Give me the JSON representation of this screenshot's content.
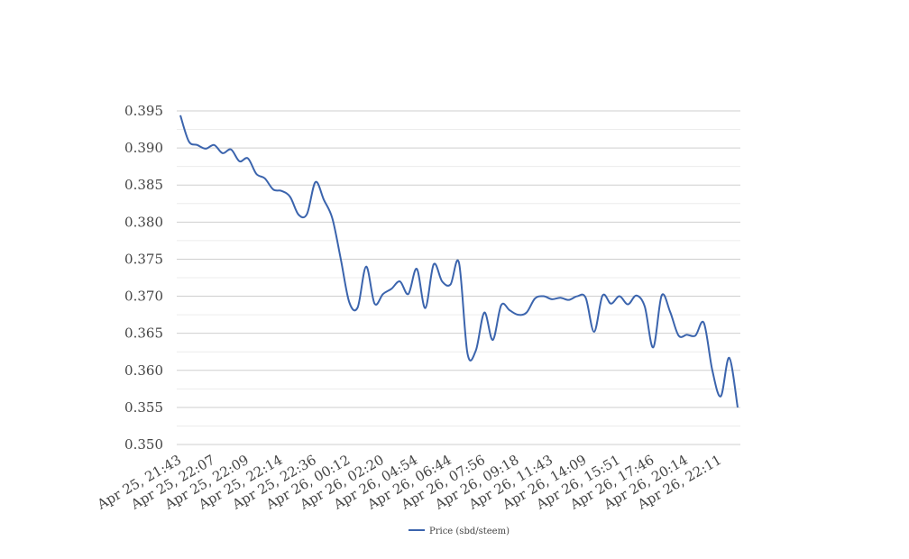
{
  "chart_data": {
    "type": "line",
    "categories": [
      "Apr 25, 21:43",
      null,
      null,
      null,
      "Apr 25, 22:07",
      null,
      null,
      null,
      "Apr 25, 22:09",
      null,
      null,
      null,
      "Apr 25, 22:14",
      null,
      null,
      null,
      "Apr 25, 22:36",
      null,
      null,
      null,
      "Apr 26, 00:12",
      null,
      null,
      null,
      "Apr 26, 02:20",
      null,
      null,
      null,
      "Apr 26, 04:54",
      null,
      null,
      null,
      "Apr 26, 06:44",
      null,
      null,
      null,
      "Apr 26, 07:56",
      null,
      null,
      null,
      "Apr 26, 09:18",
      null,
      null,
      null,
      "Apr 26, 11:43",
      null,
      null,
      null,
      "Apr 26, 14:09",
      null,
      null,
      null,
      "Apr 26, 15:51",
      null,
      null,
      null,
      "Apr 26, 17:46",
      null,
      null,
      null,
      "Apr 26, 20:14",
      null,
      null,
      null,
      "Apr 26, 22:11",
      null,
      null
    ],
    "series": [
      {
        "name": "Price (sbd/steem)",
        "color": "#3b64ad",
        "values": [
          0.3944,
          0.3909,
          0.3904,
          0.3899,
          0.3904,
          0.3893,
          0.3898,
          0.3882,
          0.3886,
          0.3865,
          0.3859,
          0.3844,
          0.3842,
          0.3834,
          0.381,
          0.3811,
          0.3854,
          0.383,
          0.3805,
          0.375,
          0.3692,
          0.3685,
          0.374,
          0.369,
          0.3703,
          0.371,
          0.372,
          0.3703,
          0.3737,
          0.3684,
          0.3743,
          0.372,
          0.3716,
          0.3745,
          0.3623,
          0.3627,
          0.3678,
          0.3641,
          0.3688,
          0.3681,
          0.3675,
          0.3678,
          0.3697,
          0.37,
          0.3696,
          0.3698,
          0.3695,
          0.37,
          0.3698,
          0.3652,
          0.3701,
          0.369,
          0.37,
          0.3689,
          0.3701,
          0.3686,
          0.3631,
          0.3701,
          0.3679,
          0.3647,
          0.3648,
          0.3647,
          0.3664,
          0.36,
          0.3565,
          0.3617,
          0.355
        ]
      }
    ],
    "ylim": [
      0.35,
      0.395
    ],
    "yticks": [
      {
        "value": 0.35,
        "label": "0.350"
      },
      {
        "value": 0.355,
        "label": "0.355"
      },
      {
        "value": 0.36,
        "label": "0.360"
      },
      {
        "value": 0.365,
        "label": "0.365"
      },
      {
        "value": 0.37,
        "label": "0.370"
      },
      {
        "value": 0.375,
        "label": "0.375"
      },
      {
        "value": 0.38,
        "label": "0.380"
      },
      {
        "value": 0.385,
        "label": "0.385"
      },
      {
        "value": 0.39,
        "label": "0.390"
      },
      {
        "value": 0.395,
        "label": "0.395"
      }
    ],
    "grid": true,
    "minor_grid": true,
    "legend": "bottom"
  }
}
